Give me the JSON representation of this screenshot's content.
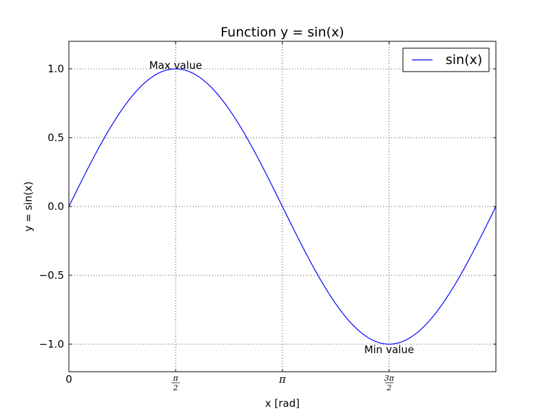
{
  "chart_data": {
    "type": "line",
    "title": "Function y = sin(x)",
    "xlabel": "x [rad]",
    "ylabel": "y = sin(x)",
    "xlim": [
      0,
      6.2832
    ],
    "ylim": [
      -1.2,
      1.2
    ],
    "grid": true,
    "grid_style": "dotted",
    "legend_position": "upper-right",
    "x_ticks": [
      {
        "value": 0,
        "label": "0",
        "kind": "plain"
      },
      {
        "value": 1.5708,
        "label": "π/2",
        "kind": "fraction",
        "num": "π",
        "den": "2"
      },
      {
        "value": 3.1416,
        "label": "π",
        "kind": "pi"
      },
      {
        "value": 4.7124,
        "label": "3π/2",
        "kind": "fraction",
        "num": "3π",
        "den": "2"
      }
    ],
    "y_ticks": [
      {
        "value": 1.0,
        "label": "1.0"
      },
      {
        "value": 0.5,
        "label": "0.5"
      },
      {
        "value": 0.0,
        "label": "0.0"
      },
      {
        "value": -0.5,
        "label": "−0.5"
      },
      {
        "value": -1.0,
        "label": "−1.0"
      }
    ],
    "series": [
      {
        "name": "sin(x)",
        "color": "#0000ff",
        "function": "sin",
        "x_start": 0,
        "x_end": 6.2832,
        "samples": 200
      }
    ],
    "annotations": [
      {
        "text": "Max value",
        "x": 1.5708,
        "y": 1.0,
        "placement": "above"
      },
      {
        "text": "Min value",
        "x": 4.7124,
        "y": -1.0,
        "placement": "below"
      }
    ]
  }
}
